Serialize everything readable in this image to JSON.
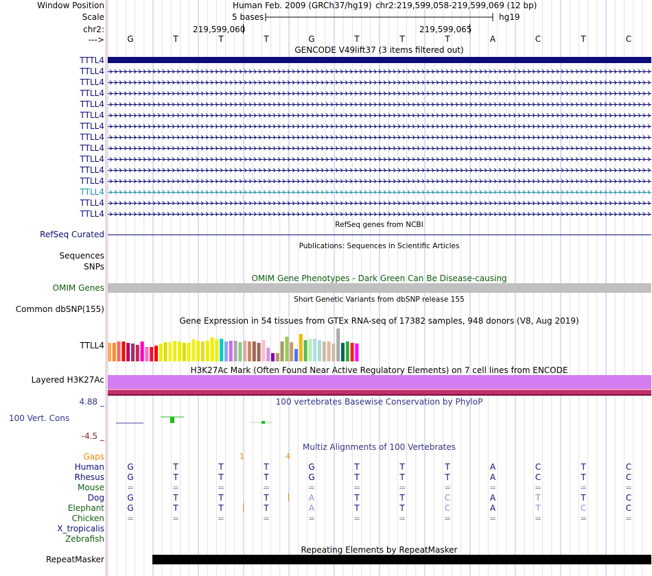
{
  "header": {
    "labels": {
      "window_position": "Window Position",
      "scale": "Scale",
      "chrom": "chr2:",
      "arrow": "--->"
    },
    "assembly": "Human Feb. 2009 (GRCh37/hg19)",
    "position": "chr2:219,599,058-219,599,069 (12 bp)",
    "scale_text": "5 bases",
    "db": "hg19",
    "coord1": "219,599,060",
    "coord2": "219,599,065",
    "bases": [
      "G",
      "T",
      "T",
      "T",
      "G",
      "T",
      "T",
      "T",
      "A",
      "C",
      "T",
      "C"
    ]
  },
  "gencode": {
    "title": "GENCODE V49lift37 (3 items filtered out)",
    "transcripts": [
      "TTTL4",
      "TTLL4",
      "TTLL4",
      "TTLL4",
      "TTLL4",
      "TTLL4",
      "TTLL4",
      "TTLL4",
      "TTLL4",
      "TTLL4",
      "TTLL4",
      "TTLL4",
      "TTLL4",
      "TTLL4",
      "TTLL4"
    ],
    "colors": {
      "gene": "#0c0c78",
      "highlight": "#1c8fa6"
    }
  },
  "refseq": {
    "title": "RefSeq genes from NCBI",
    "label": "RefSeq Curated"
  },
  "publications": {
    "title": "Publications: Sequences in Scientific Articles",
    "label1": "Sequences",
    "label2": "SNPs"
  },
  "omim": {
    "title": "OMIM Gene Phenotypes - Dark Green Can Be Disease-causing",
    "label": "OMIM Genes",
    "color": "#0d5c0d"
  },
  "dbsnp": {
    "title": "Short Genetic Variants from dbSNP release 155",
    "label": "Common dbSNP(155)"
  },
  "gtex": {
    "title": "Gene Expression in 54 tissues from GTEx RNA-seq of 17382 samples, 948 donors (V8, Aug 2019)",
    "label": "TTLL4",
    "values": [
      0.52,
      0.52,
      0.56,
      0.56,
      0.52,
      0.5,
      0.48,
      0.56,
      0.42,
      0.42,
      0.46,
      0.5,
      0.54,
      0.54,
      0.58,
      0.56,
      0.52,
      0.52,
      0.62,
      0.58,
      0.56,
      0.58,
      0.68,
      0.62,
      0.64,
      0.56,
      0.58,
      0.58,
      0.54,
      0.58,
      0.56,
      0.56,
      0.52,
      0.6,
      0.4,
      0.24,
      0.24,
      0.56,
      0.7,
      0.54,
      0.36,
      0.78,
      0.6,
      0.64,
      0.64,
      0.6,
      0.56,
      0.56,
      0.5,
      0.94,
      0.52,
      0.56,
      0.52,
      0.5
    ],
    "colors": [
      "#ffaa55",
      "#ff8833",
      "#ee6b6b",
      "#ee1100",
      "#bb0066",
      "#993366",
      "#cc2255",
      "#ff00bb",
      "#ff66cc",
      "#ee1133",
      "#ff0000",
      "#eeee00",
      "#dddd00",
      "#eeee33",
      "#eeee11",
      "#eeee00",
      "#dddd00",
      "#eeee00",
      "#eeee22",
      "#eeee00",
      "#dddd33",
      "#eeee00",
      "#eeee00",
      "#eeee11",
      "#00cccc",
      "#88aaee",
      "#cc66ff",
      "#aaaaaa",
      "#88cc88",
      "#ddaaaa",
      "#cc8866",
      "#996655",
      "#996655",
      "#ffbbcc",
      "#cc99ee",
      "#8800aa",
      "#aa9966",
      "#aa9966",
      "#99cc55",
      "#cc9966",
      "#4477ff",
      "#eebb00",
      "#55bb55",
      "#bbeeaa",
      "#aaddee",
      "#aaddcc",
      "#ccbbaa",
      "#ddbb99",
      "#ccbbaa",
      "#aaaaaa",
      "#006666",
      "#33aa33",
      "#ee2222",
      "#ff00ff"
    ]
  },
  "h3k27ac": {
    "title": "H3K27Ac Mark (Often Found Near Active Regulatory Elements) on 7 cell lines from ENCODE",
    "label": "Layered H3K27Ac"
  },
  "phylop": {
    "title": "100 vertebrates Basewise Conservation by PhyloP",
    "label": "100 Vert. Cons",
    "max": "4.88 _",
    "min": "-4.5 _"
  },
  "multiz": {
    "title": "Multiz Alignments of 100 Vertebrates",
    "gaps_label": "Gaps",
    "gap1": "1",
    "gap2": "4",
    "species": [
      {
        "name": "Human",
        "bases": [
          "G",
          "T",
          "T",
          "T",
          "G",
          "T",
          "T",
          "T",
          "A",
          "C",
          "T",
          "C"
        ]
      },
      {
        "name": "Rhesus",
        "bases": [
          "G",
          "T",
          "T",
          "T",
          "G",
          "T",
          "T",
          "T",
          "A",
          "C",
          "T",
          "C"
        ]
      },
      {
        "name": "Mouse",
        "bases": [
          "=",
          "=",
          "=",
          "=",
          "=",
          "=",
          "=",
          "=",
          "=",
          "=",
          "=",
          "="
        ]
      },
      {
        "name": "Dog",
        "bases": [
          "G",
          "T",
          "T",
          "T",
          "A",
          "T",
          "T",
          "C",
          "A",
          "T",
          "T",
          "C"
        ]
      },
      {
        "name": "Elephant",
        "bases": [
          "G",
          "T",
          "T",
          "T",
          "A",
          "T",
          "T",
          "C",
          "A",
          "T",
          "C",
          "C"
        ]
      },
      {
        "name": "Chicken",
        "bases": [
          "=",
          "=",
          "=",
          "=",
          "=",
          "=",
          "=",
          "=",
          "=",
          "=",
          "=",
          "="
        ]
      },
      {
        "name": "X_tropicalis",
        "bases": [
          "",
          "",
          "",
          "",
          "",
          "",
          "",
          "",
          "",
          "",
          "",
          ""
        ]
      },
      {
        "name": "Zebrafish",
        "bases": [
          "",
          "",
          "",
          "",
          "",
          "",
          "",
          "",
          "",
          "",
          "",
          ""
        ]
      }
    ]
  },
  "repeatmasker": {
    "title": "Repeating Elements by RepeatMasker",
    "label": "RepeatMasker"
  }
}
